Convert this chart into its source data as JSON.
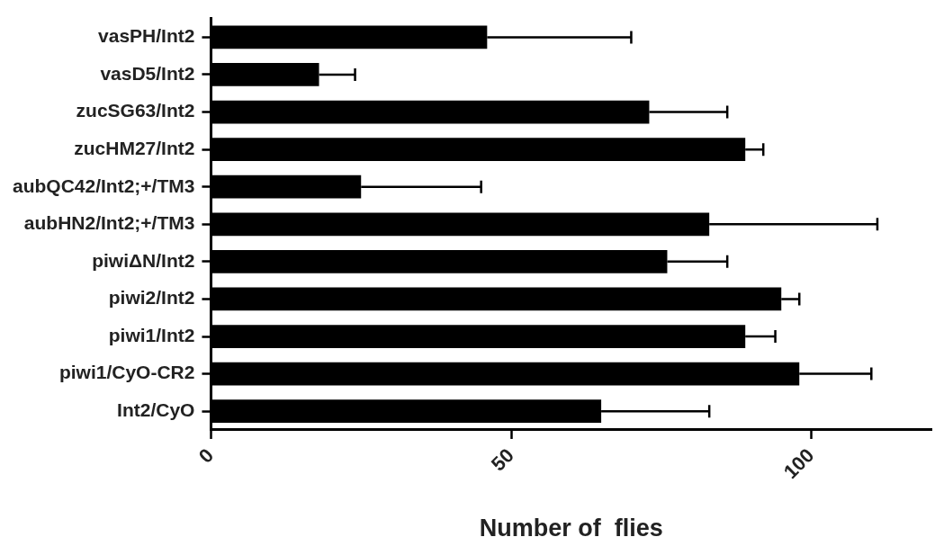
{
  "chart_data": {
    "type": "bar",
    "orientation": "horizontal",
    "xlabel": "Number of  flies",
    "categories": [
      "vasPH/Int2",
      "vasD5/Int2",
      "zucSG63/Int2",
      "zucHM27/Int2",
      "aubQC42/Int2;+/TM3",
      "aubHN2/Int2;+/TM3",
      "piwiΔN/Int2",
      "piwi2/Int2",
      "piwi1/Int2",
      "piwi1/CyO-CR2",
      "Int2/CyO"
    ],
    "values": [
      46,
      18,
      73,
      89,
      25,
      83,
      76,
      95,
      89,
      98,
      65
    ],
    "errors": [
      [
        46,
        70
      ],
      [
        18,
        24
      ],
      [
        73,
        86
      ],
      [
        89,
        92
      ],
      [
        25,
        45
      ],
      [
        83,
        111
      ],
      [
        76,
        86
      ],
      [
        95,
        98
      ],
      [
        89,
        94
      ],
      [
        98,
        110
      ],
      [
        65,
        83
      ]
    ],
    "color": "#000000",
    "xlim": [
      0,
      120
    ],
    "xticks": [
      0,
      50,
      100
    ],
    "grid": false,
    "legend": false
  }
}
